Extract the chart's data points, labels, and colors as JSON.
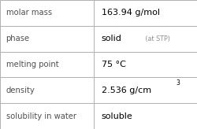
{
  "rows": [
    {
      "label": "molar mass",
      "value": "163.94 g/mol",
      "value_suffix": null,
      "superscript": null
    },
    {
      "label": "phase",
      "value": "solid",
      "value_suffix": " (at STP)",
      "superscript": null
    },
    {
      "label": "melting point",
      "value": "75 °C",
      "value_suffix": null,
      "superscript": null
    },
    {
      "label": "density",
      "value": "2.536 g/cm",
      "value_suffix": null,
      "superscript": "3"
    },
    {
      "label": "solubility in water",
      "value": "soluble",
      "value_suffix": null,
      "superscript": null
    }
  ],
  "background_color": "#ffffff",
  "grid_color": "#b0b0b0",
  "label_color": "#505050",
  "value_color": "#000000",
  "suffix_color": "#909090",
  "label_fontsize": 7.2,
  "value_fontsize": 8.0,
  "suffix_fontsize": 5.8,
  "super_fontsize": 5.5,
  "col_split": 0.475,
  "figsize": [
    2.5,
    1.64
  ],
  "dpi": 100
}
